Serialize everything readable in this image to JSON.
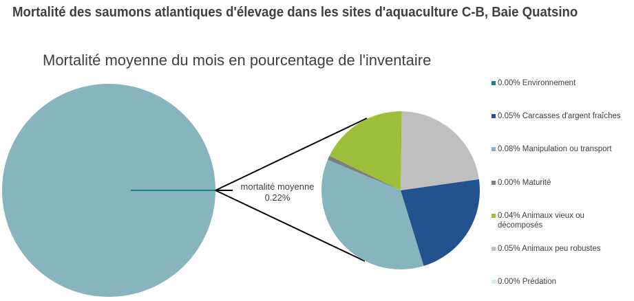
{
  "header": {
    "title": "Mortalité des saumons atlantiques d'élevage dans les sites d'aquaculture C-B, Baie Quatsino"
  },
  "chart_data": {
    "type": "pie",
    "title": "Mortalité des saumons atlantiques d'élevage dans les sites d'aquaculture C-B, Baie Quatsino",
    "subtitle": "Mortalité moyenne du mois en pourcentage de l'inventaire",
    "subtype": "pie-of-pie",
    "callout": {
      "label": "mortalité moyenne",
      "value": "0.22%"
    },
    "categories": [
      "Environnement",
      "Carcasses d'argent fraîches",
      "Manipulation ou transport",
      "Maturité",
      "Animaux vieux ou décomposés",
      "Animaux peu robustes",
      "Prédation"
    ],
    "values": [
      0.0,
      0.05,
      0.08,
      0.0,
      0.04,
      0.05,
      0.0
    ],
    "unit": "%",
    "colors": [
      "#1f7f8c",
      "#23538f",
      "#87b5bd",
      "#7f7f7f",
      "#9dbf3b",
      "#bfbfbf",
      "#d9eaea"
    ],
    "legend_position": "right"
  },
  "legend": {
    "items": [
      {
        "label": "0.00% Environnement",
        "color": "#1f7f8c"
      },
      {
        "label": "0.05% Carcasses d'argent fraîches",
        "color": "#23538f"
      },
      {
        "label": "0.08% Manipulation ou transport",
        "color": "#87b5bd"
      },
      {
        "label": "0.00% Maturité",
        "color": "#7f7f7f"
      },
      {
        "label": "0.04% Animaux vieux ou décomposés",
        "color": "#9dbf3b"
      },
      {
        "label": "0.05% Animaux peu robustes",
        "color": "#bfbfbf"
      },
      {
        "label": "0.00% Prédation",
        "color": "#d9eaea"
      }
    ]
  }
}
